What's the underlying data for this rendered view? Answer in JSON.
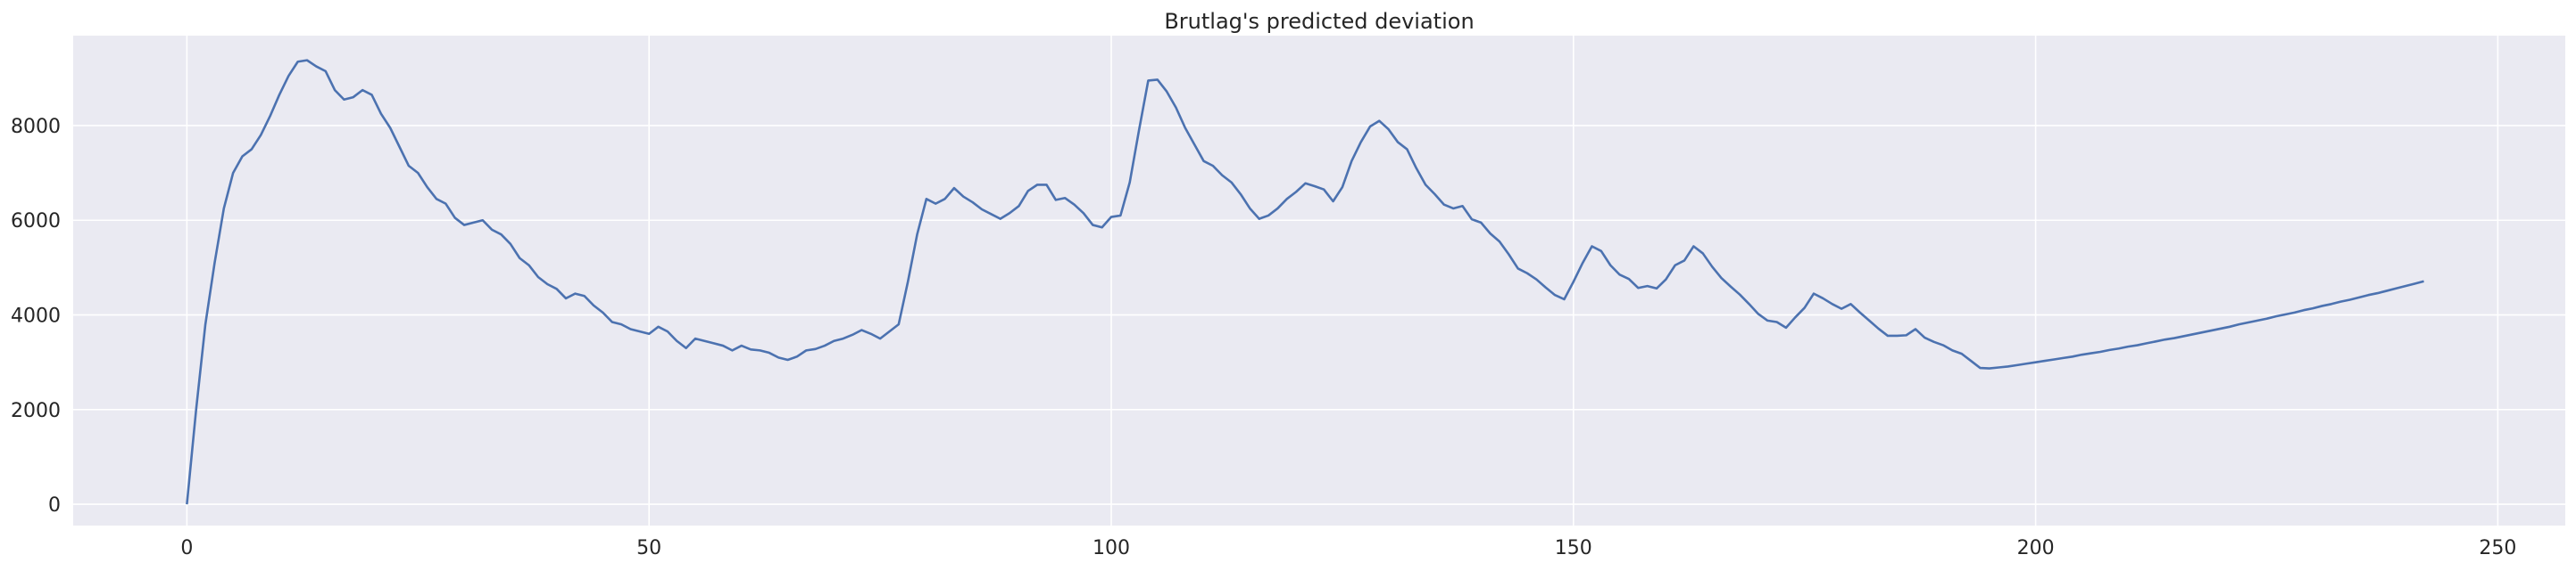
{
  "chart_data": {
    "type": "line",
    "title": "Brutlag's predicted deviation",
    "xlabel": "",
    "ylabel": "",
    "xlim": [
      -12.3,
      257.3
    ],
    "ylim": [
      -450,
      9900
    ],
    "xticks": [
      0,
      50,
      100,
      150,
      200,
      250
    ],
    "yticks": [
      0,
      2000,
      4000,
      6000,
      8000
    ],
    "grid": true,
    "background_color": "#eaeaf2",
    "line_color": "#4c72b0",
    "series": [
      {
        "values": [
          0,
          2000,
          3800,
          5100,
          6250,
          7000,
          7350,
          7500,
          7800,
          8200,
          8650,
          9050,
          9350,
          9380,
          9250,
          9150,
          8750,
          8550,
          8600,
          8750,
          8650,
          8250,
          7950,
          7550,
          7150,
          7000,
          6700,
          6450,
          6350,
          6050,
          5900,
          5950,
          6000,
          5800,
          5700,
          5500,
          5200,
          5050,
          4800,
          4650,
          4550,
          4350,
          4450,
          4400,
          4200,
          4050,
          3850,
          3800,
          3700,
          3650,
          3600,
          3750,
          3650,
          3450,
          3300,
          3500,
          3450,
          3400,
          3350,
          3250,
          3350,
          3270,
          3250,
          3200,
          3100,
          3050,
          3120,
          3250,
          3280,
          3350,
          3450,
          3500,
          3580,
          3680,
          3600,
          3500,
          3650,
          3800,
          4700,
          5700,
          6450,
          6350,
          6450,
          6680,
          6500,
          6380,
          6230,
          6130,
          6030,
          6150,
          6300,
          6620,
          6750,
          6750,
          6430,
          6470,
          6330,
          6150,
          5900,
          5850,
          6070,
          6100,
          6800,
          7900,
          8950,
          8970,
          8720,
          8380,
          7950,
          7600,
          7250,
          7150,
          6950,
          6800,
          6550,
          6250,
          6030,
          6100,
          6250,
          6450,
          6600,
          6780,
          6720,
          6650,
          6400,
          6700,
          7250,
          7650,
          7980,
          8100,
          7920,
          7650,
          7500,
          7100,
          6750,
          6550,
          6330,
          6250,
          6300,
          6020,
          5950,
          5720,
          5550,
          5280,
          4980,
          4880,
          4750,
          4580,
          4420,
          4330,
          4700,
          5100,
          5450,
          5350,
          5050,
          4850,
          4760,
          4570,
          4610,
          4560,
          4750,
          5050,
          5150,
          5450,
          5300,
          5020,
          4780,
          4600,
          4430,
          4230,
          4020,
          3880,
          3850,
          3730,
          3950,
          4150,
          4450,
          4350,
          4230,
          4130,
          4230,
          4050,
          3880,
          3710,
          3560,
          3560,
          3570,
          3700,
          3520,
          3430,
          3360,
          3250,
          3180,
          3030,
          2880,
          2870,
          2890,
          2910,
          2940,
          2970,
          3000,
          3030,
          3060,
          3090,
          3120,
          3160,
          3190,
          3220,
          3260,
          3290,
          3330,
          3360,
          3400,
          3440,
          3480,
          3510,
          3550,
          3590,
          3630,
          3670,
          3710,
          3750,
          3800,
          3840,
          3880,
          3920,
          3970,
          4010,
          4050,
          4100,
          4140,
          4190,
          4230,
          4280,
          4320,
          4370,
          4420,
          4460,
          4510,
          4560,
          4610,
          4660,
          4710
        ]
      }
    ]
  }
}
